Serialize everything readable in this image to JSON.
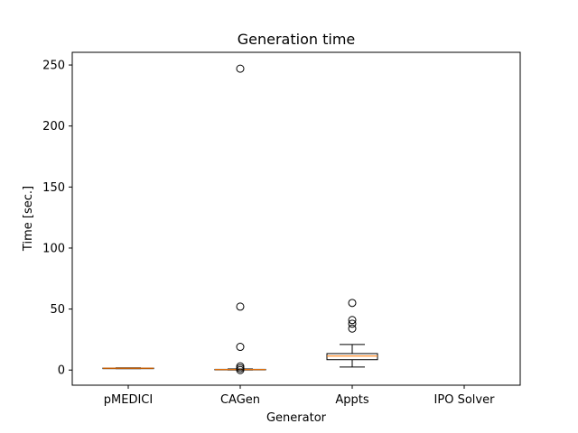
{
  "chart_data": {
    "type": "boxplot",
    "title": "Generation time",
    "xlabel": "Generator",
    "ylabel": "Time [sec.]",
    "ylim": [
      -12.4,
      260.4
    ],
    "yticks": [
      0,
      50,
      100,
      150,
      200,
      250
    ],
    "categories": [
      "pMEDICI",
      "CAGen",
      "Appts",
      "IPO Solver"
    ],
    "boxes": [
      {
        "name": "pMEDICI",
        "whislo": 1.2,
        "q1": 1.3,
        "med": 1.5,
        "q3": 1.6,
        "whishi": 1.8,
        "fliers": []
      },
      {
        "name": "CAGen",
        "whislo": 0.1,
        "q1": 0.2,
        "med": 0.4,
        "q3": 0.6,
        "whishi": 0.9,
        "fliers": [
          247,
          52,
          19,
          3,
          1.5,
          0
        ]
      },
      {
        "name": "Appts",
        "whislo": 2.5,
        "q1": 8.5,
        "med": 11.5,
        "q3": 13.5,
        "whishi": 21,
        "fliers": [
          55,
          41,
          38,
          34
        ]
      },
      {
        "name": "IPO Solver",
        "whislo": null,
        "q1": null,
        "med": null,
        "q3": null,
        "whishi": null,
        "fliers": []
      }
    ],
    "colors": {
      "box": "#000000",
      "median": "#ff7f0e",
      "flier": "#000000"
    }
  }
}
